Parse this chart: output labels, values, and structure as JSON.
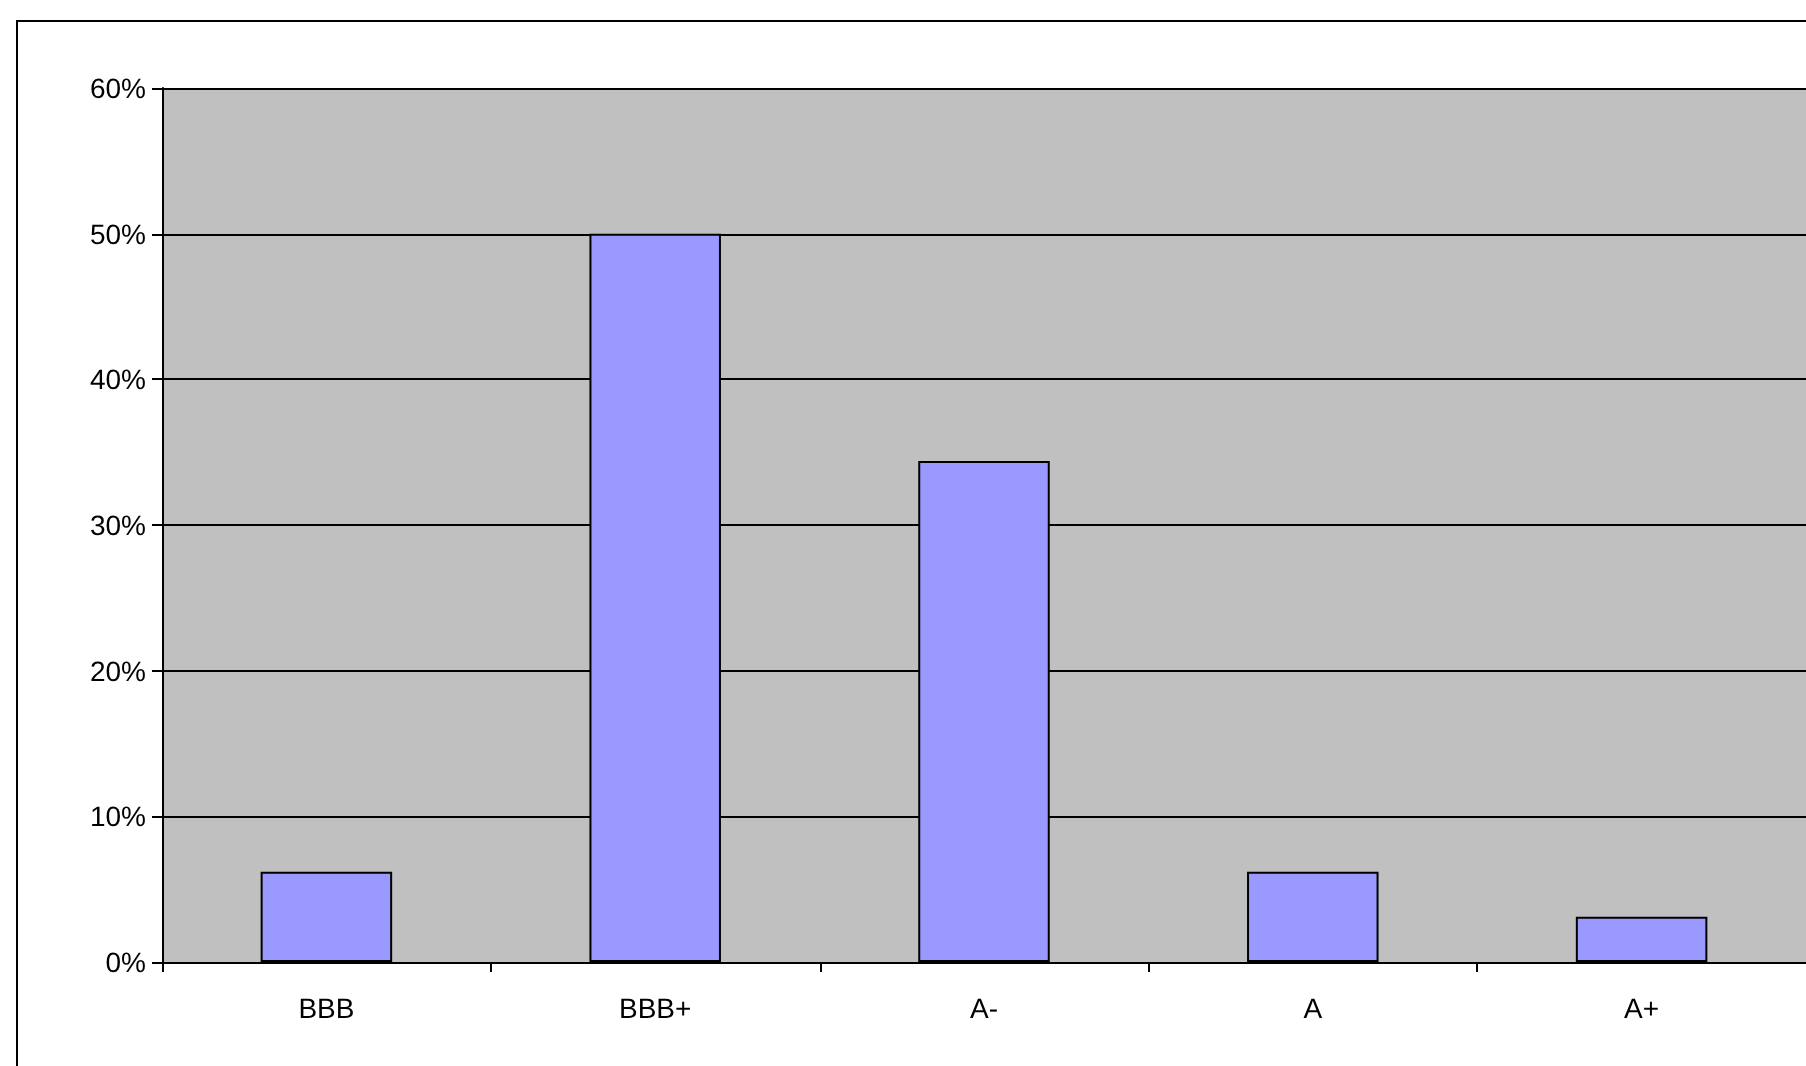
{
  "chart_data": {
    "type": "bar",
    "categories": [
      "BBB",
      "BBB+",
      "A-",
      "A",
      "A+"
    ],
    "values": [
      6.2,
      50,
      34.4,
      6.2,
      3.1
    ],
    "color": "#9999ff",
    "ylim": [
      0,
      60
    ],
    "yticks": [
      {
        "value": 0,
        "label": "0%"
      },
      {
        "value": 10,
        "label": "10%"
      },
      {
        "value": 20,
        "label": "20%"
      },
      {
        "value": 30,
        "label": "30%"
      },
      {
        "value": 40,
        "label": "40%"
      },
      {
        "value": 50,
        "label": "50%"
      },
      {
        "value": 60,
        "label": "60%"
      }
    ],
    "grid": "y"
  }
}
